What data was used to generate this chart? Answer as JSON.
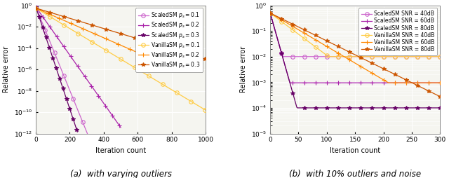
{
  "fig_width": 6.4,
  "fig_height": 2.54,
  "dpi": 100,
  "left": {
    "xlabel": "Iteration count",
    "ylabel": "Relative error",
    "caption": "(a)  with varying outliers",
    "xlim": [
      0,
      1000
    ],
    "ylim_log": [
      -12,
      0
    ],
    "xticks": [
      0,
      200,
      400,
      600,
      800,
      1000
    ],
    "series": [
      {
        "label": "ScaledSM $p_s = 0.1$",
        "color": "#cc66cc",
        "marker": "o",
        "decay": 0.09,
        "end_iter": 660,
        "start": 0.72
      },
      {
        "label": "ScaledSM $p_s = 0.2$",
        "color": "#aa22aa",
        "marker": "+",
        "decay": 0.052,
        "end_iter": 500,
        "start": 0.72
      },
      {
        "label": "ScaledSM $p_s = 0.3$",
        "color": "#660066",
        "marker": "*",
        "decay": 0.11,
        "end_iter": 245,
        "start": 0.72
      },
      {
        "label": "VanillaSM $p_s = 0.1$",
        "color": "#ffcc44",
        "marker": "o",
        "decay": 0.022,
        "end_iter": 1000,
        "start": 0.55
      },
      {
        "label": "VanillaSM $p_s = 0.2$",
        "color": "#ff8800",
        "marker": "+",
        "decay": 0.016,
        "end_iter": 830,
        "start": 0.55
      },
      {
        "label": "VanillaSM $p_s = 0.3$",
        "color": "#cc5500",
        "marker": "*",
        "decay": 0.011,
        "end_iter": 1000,
        "start": 0.55
      }
    ]
  },
  "right": {
    "xlabel": "Iteration count",
    "ylabel": "Relative error",
    "caption": "(b)  with 10% outliers and noise",
    "xlim": [
      0,
      300
    ],
    "ylim_log": [
      -5,
      0
    ],
    "xticks": [
      0,
      50,
      100,
      150,
      200,
      250,
      300
    ],
    "series": [
      {
        "label": "ScaledSM SNR = 40dB",
        "color": "#cc66cc",
        "marker": "o",
        "plateau": 0.01,
        "start": 0.5,
        "decay": 0.18
      },
      {
        "label": "ScaledSM SNR = 60dB",
        "color": "#aa22aa",
        "marker": "+",
        "plateau": 0.00095,
        "start": 0.5,
        "decay": 0.18
      },
      {
        "label": "ScaledSM SNR = 80dB",
        "color": "#660066",
        "marker": "*",
        "plateau": 0.0001,
        "start": 0.5,
        "decay": 0.18
      },
      {
        "label": "VanillaSM SNR = 40dB",
        "color": "#ffcc44",
        "marker": "o",
        "plateau": 0.01,
        "start": 0.5,
        "decay": 0.038
      },
      {
        "label": "VanillaSM SNR = 60dB",
        "color": "#ff8800",
        "marker": "+",
        "plateau": 0.00095,
        "start": 0.5,
        "decay": 0.03
      },
      {
        "label": "VanillaSM SNR = 80dB",
        "color": "#cc5500",
        "marker": "*",
        "plateau": 0.0001,
        "start": 0.5,
        "decay": 0.025
      }
    ]
  },
  "bg_color": "#f5f5f0",
  "grid_color": "#ffffff",
  "grid_alpha": 1.0,
  "marker_size": 4,
  "linewidth": 0.9,
  "legend_fontsize": 5.5,
  "axis_fontsize": 7,
  "tick_fontsize": 6.5,
  "caption_fontsize": 8.5
}
